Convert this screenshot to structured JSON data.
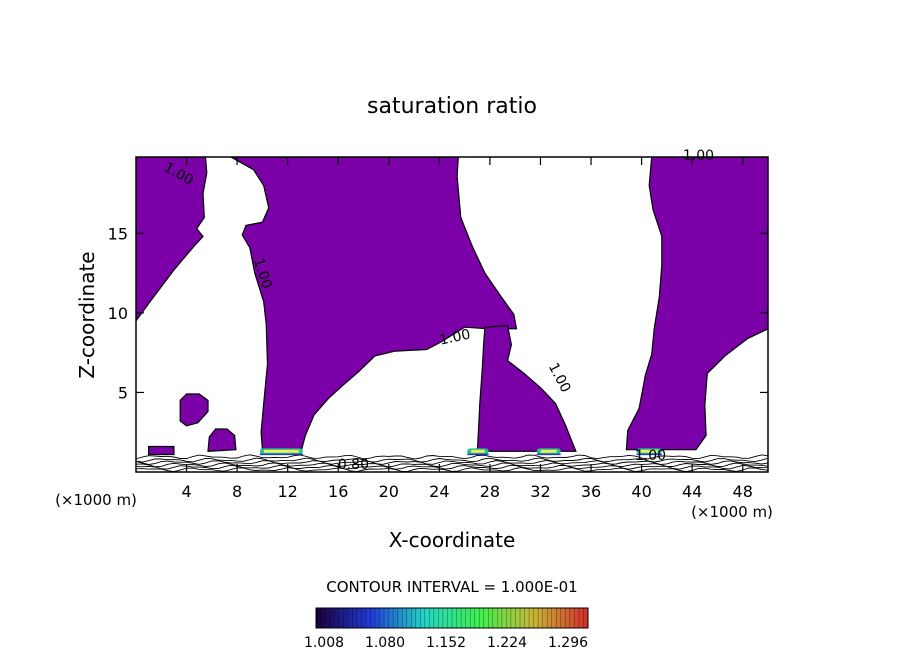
{
  "chart_data": {
    "type": "contour",
    "title": "saturation ratio",
    "xlabel": "X-coordinate",
    "ylabel": "Z-coordinate",
    "x_unit_left": "(×1000 m)",
    "x_unit_right": "(×1000 m)",
    "xlim": [
      0,
      50
    ],
    "ylim": [
      0,
      19.8
    ],
    "x_ticks": [
      4,
      8,
      12,
      16,
      20,
      24,
      28,
      32,
      36,
      40,
      44,
      48
    ],
    "y_ticks": [
      5,
      10,
      15
    ],
    "grid": false,
    "fill_color": "#7b00a8",
    "fill_threshold": 1.0,
    "contour_labels": [
      {
        "text": "1.00",
        "x": 3.2,
        "y": 18.5,
        "rot": 30
      },
      {
        "text": "1.00",
        "x": 9.7,
        "y": 12.4,
        "rot": 72
      },
      {
        "text": "1.00",
        "x": 25.3,
        "y": 8.2,
        "rot": -12
      },
      {
        "text": "1.00",
        "x": 33.2,
        "y": 5.8,
        "rot": 62
      },
      {
        "text": "1.00",
        "x": 44.5,
        "y": 19.6,
        "rot": 0
      },
      {
        "text": "0.80",
        "x": 17.2,
        "y": 0.2,
        "rot": 0
      },
      {
        "text": "1.00",
        "x": 40.7,
        "y": 0.75,
        "rot": 0
      }
    ],
    "regions": [
      {
        "name": "upper-left",
        "pts": [
          [
            0,
            19.8
          ],
          [
            5.5,
            19.8
          ],
          [
            5.6,
            18.8
          ],
          [
            5.3,
            17.5
          ],
          [
            5.4,
            16.0
          ],
          [
            4.8,
            15.3
          ],
          [
            5.3,
            14.8
          ],
          [
            4.6,
            14.2
          ],
          [
            3.0,
            12.7
          ],
          [
            1.2,
            10.8
          ],
          [
            0,
            9.5
          ]
        ]
      },
      {
        "name": "left-central",
        "pts": [
          [
            7.5,
            19.8
          ],
          [
            25.5,
            19.8
          ],
          [
            25.4,
            18.6
          ],
          [
            25.7,
            16.0
          ],
          [
            26.6,
            14.2
          ],
          [
            27.6,
            12.5
          ],
          [
            28.9,
            11.0
          ],
          [
            29.9,
            9.9
          ],
          [
            30.1,
            9.0
          ],
          [
            27.9,
            9.0
          ],
          [
            26.0,
            9.1
          ],
          [
            24.2,
            8.2
          ],
          [
            23.0,
            7.7
          ],
          [
            20.5,
            7.6
          ],
          [
            18.9,
            7.3
          ],
          [
            17.6,
            6.3
          ],
          [
            16.3,
            5.4
          ],
          [
            15.2,
            4.6
          ],
          [
            14.1,
            3.6
          ],
          [
            13.4,
            2.3
          ],
          [
            13.1,
            1.4
          ],
          [
            10.0,
            1.4
          ],
          [
            9.9,
            2.5
          ],
          [
            10.1,
            4.3
          ],
          [
            10.4,
            6.8
          ],
          [
            10.3,
            9.3
          ],
          [
            10.1,
            10.7
          ],
          [
            9.4,
            12.5
          ],
          [
            9.0,
            14.1
          ],
          [
            8.4,
            14.9
          ],
          [
            8.7,
            15.5
          ],
          [
            10.0,
            15.7
          ],
          [
            10.5,
            16.6
          ],
          [
            10.1,
            18.0
          ],
          [
            9.3,
            19.0
          ]
        ]
      },
      {
        "name": "mid-right",
        "pts": [
          [
            27.6,
            9.1
          ],
          [
            29.4,
            9.2
          ],
          [
            29.7,
            8.0
          ],
          [
            29.4,
            7.0
          ],
          [
            30.7,
            6.2
          ],
          [
            32.0,
            5.3
          ],
          [
            33.2,
            4.3
          ],
          [
            34.0,
            2.9
          ],
          [
            34.5,
            1.9
          ],
          [
            34.8,
            1.3
          ],
          [
            27.0,
            1.3
          ],
          [
            27.1,
            2.6
          ],
          [
            27.2,
            4.3
          ],
          [
            27.4,
            6.5
          ],
          [
            27.5,
            8.0
          ]
        ]
      },
      {
        "name": "right-column",
        "pts": [
          [
            40.8,
            19.8
          ],
          [
            50,
            19.8
          ],
          [
            50,
            9.0
          ],
          [
            48.4,
            8.4
          ],
          [
            46.6,
            7.3
          ],
          [
            45.2,
            6.2
          ],
          [
            45.0,
            4.2
          ],
          [
            45.1,
            2.3
          ],
          [
            44.3,
            1.4
          ],
          [
            38.8,
            1.4
          ],
          [
            38.9,
            2.6
          ],
          [
            39.8,
            4.0
          ],
          [
            40.3,
            6.1
          ],
          [
            40.8,
            7.4
          ],
          [
            41.0,
            9.0
          ],
          [
            41.4,
            11.0
          ],
          [
            41.6,
            13.0
          ],
          [
            41.6,
            14.8
          ],
          [
            40.9,
            16.5
          ],
          [
            40.6,
            18.0
          ]
        ]
      },
      {
        "name": "small-blob-left",
        "pts": [
          [
            3.5,
            4.5
          ],
          [
            4.0,
            4.9
          ],
          [
            5.0,
            4.9
          ],
          [
            5.7,
            4.5
          ],
          [
            5.7,
            3.8
          ],
          [
            4.9,
            3.1
          ],
          [
            4.0,
            2.9
          ],
          [
            3.5,
            3.2
          ]
        ]
      },
      {
        "name": "small-blob-bottom",
        "pts": [
          [
            5.7,
            1.3
          ],
          [
            5.8,
            2.2
          ],
          [
            6.3,
            2.7
          ],
          [
            7.2,
            2.7
          ],
          [
            7.8,
            2.3
          ],
          [
            7.9,
            1.4
          ]
        ]
      },
      {
        "name": "sliver-left",
        "pts": [
          [
            1.0,
            1.6
          ],
          [
            3.0,
            1.6
          ],
          [
            3.0,
            1.1
          ],
          [
            1.0,
            1.1
          ]
        ]
      }
    ],
    "highlights": [
      {
        "x": [
          9.8,
          13.2
        ],
        "z": 1.3
      },
      {
        "x": [
          26.2,
          27.9
        ],
        "z": 1.3
      },
      {
        "x": [
          31.7,
          33.6
        ],
        "z": 1.3
      },
      {
        "x": [
          39.6,
          41.6
        ],
        "z": 1.3
      }
    ],
    "colorbar": {
      "labels": [
        "1.008",
        "1.080",
        "1.152",
        "1.224",
        "1.296"
      ],
      "colors": [
        "#1a003a",
        "#1f3bd8",
        "#24d6c3",
        "#3ef04f",
        "#c7b735",
        "#d32c2c"
      ]
    },
    "contour_interval_text": "CONTOUR INTERVAL = 1.000E-01"
  }
}
